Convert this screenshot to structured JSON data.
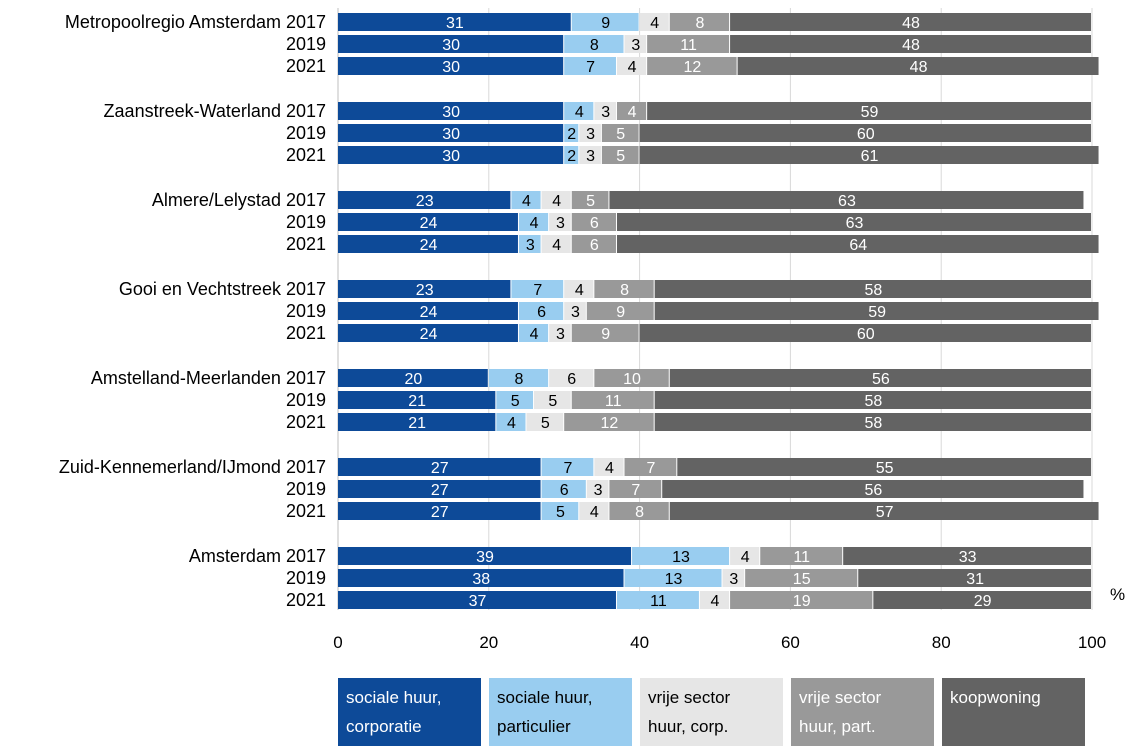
{
  "chart_data": {
    "type": "bar",
    "orientation": "horizontal",
    "stacked": true,
    "unit": "%",
    "xlim": [
      0,
      100
    ],
    "x_ticks": [
      "0",
      "20",
      "40",
      "60",
      "80",
      "100"
    ],
    "grid": true,
    "categories": [
      "Metropoolregio Amsterdam 2017",
      "2019",
      "2021",
      "Zaanstreek-Waterland 2017",
      "2019",
      "2021",
      "Almere/Lelystad 2017",
      "2019",
      "2021",
      "Gooi en Vechtstreek 2017",
      "2019",
      "2021",
      "Amstelland-Meerlanden 2017",
      "2019",
      "2021",
      "Zuid-Kennemerland/IJmond 2017",
      "2019",
      "2021",
      "Amsterdam 2017",
      "2019",
      "2021"
    ],
    "series": [
      {
        "name": "sociale huur, corporatie",
        "color": "#0d4a98",
        "values": [
          31,
          30,
          30,
          30,
          30,
          30,
          23,
          24,
          24,
          23,
          24,
          24,
          20,
          21,
          21,
          27,
          27,
          27,
          39,
          38,
          37
        ]
      },
      {
        "name": "sociale huur, particulier",
        "color": "#99cdf0",
        "values": [
          9,
          8,
          7,
          4,
          2,
          2,
          4,
          4,
          3,
          7,
          6,
          4,
          8,
          5,
          4,
          7,
          6,
          5,
          13,
          13,
          11
        ]
      },
      {
        "name": "vrije sector huur, corp.",
        "color": "#e6e6e6",
        "values": [
          4,
          3,
          4,
          3,
          3,
          3,
          4,
          3,
          4,
          4,
          3,
          3,
          6,
          5,
          5,
          4,
          3,
          4,
          4,
          3,
          4
        ]
      },
      {
        "name": "vrije sector huur, part.",
        "color": "#999999",
        "values": [
          8,
          11,
          12,
          4,
          5,
          5,
          5,
          6,
          6,
          8,
          9,
          9,
          10,
          11,
          12,
          7,
          7,
          8,
          11,
          15,
          19
        ]
      },
      {
        "name": "koopwoning",
        "color": "#636363",
        "values": [
          48,
          48,
          48,
          59,
          60,
          61,
          63,
          63,
          64,
          58,
          59,
          60,
          56,
          58,
          58,
          55,
          56,
          57,
          33,
          31,
          29
        ]
      }
    ],
    "legend": {
      "placement": "bottom",
      "entries": [
        {
          "line1": "sociale huur,",
          "line2": "corporatie",
          "color": "#0d4a98",
          "text_color": "#ffffff"
        },
        {
          "line1": "sociale huur,",
          "line2": "particulier",
          "color": "#99cdf0",
          "text_color": "#000000"
        },
        {
          "line1": "vrije sector",
          "line2": "huur, corp.",
          "color": "#e6e6e6",
          "text_color": "#000000"
        },
        {
          "line1": "vrije sector",
          "line2": "huur, part.",
          "color": "#999999",
          "text_color": "#ffffff"
        },
        {
          "line1": "koopwoning",
          "line2": "",
          "color": "#636363",
          "text_color": "#ffffff"
        }
      ]
    }
  }
}
